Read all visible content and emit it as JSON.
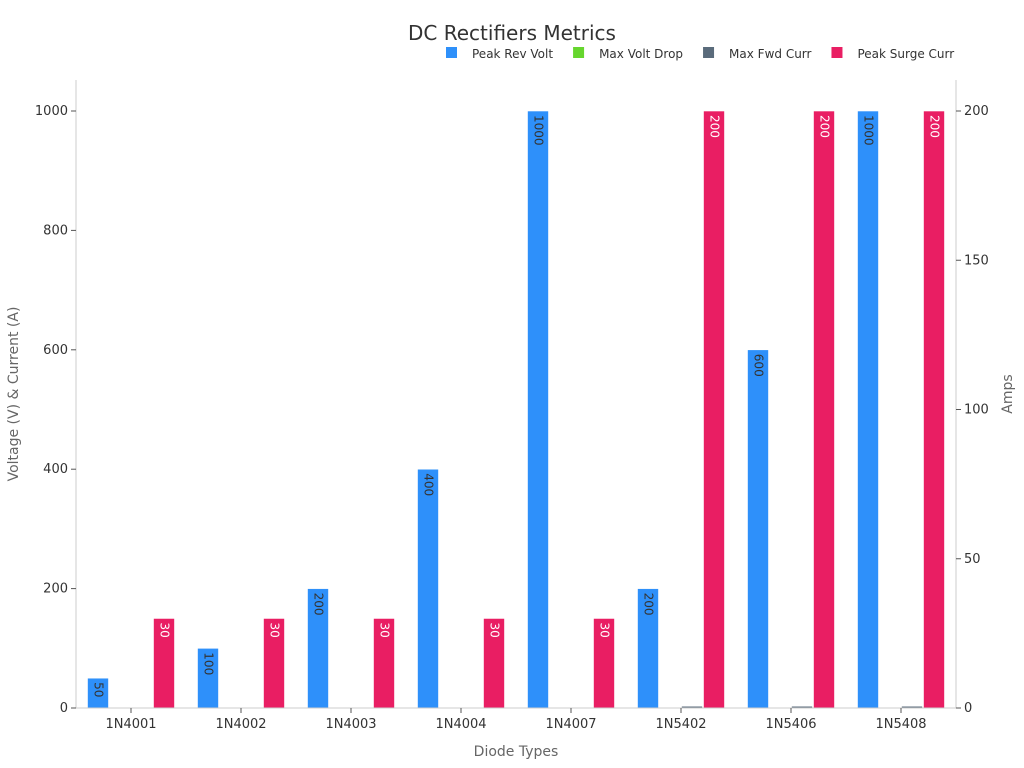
{
  "chart_data": {
    "type": "bar",
    "title": "DC Rectifiers Metrics",
    "xlabel": "Diode Types",
    "ylabel": "Voltage (V) & Current (A)",
    "y2label": "Amps",
    "categories": [
      "1N4001",
      "1N4002",
      "1N4003",
      "1N4004",
      "1N4007",
      "1N5402",
      "1N5406",
      "1N5408"
    ],
    "ylim": [
      0,
      1050
    ],
    "y2lim": [
      0,
      210
    ],
    "yticks": [
      0,
      200,
      400,
      600,
      800,
      1000
    ],
    "y2ticks": [
      0,
      50,
      100,
      150,
      200
    ],
    "legend_position": "top-right",
    "series": [
      {
        "name": "Peak Rev Volt",
        "axis": "left",
        "color": "#2e90fa",
        "label_color": "#333333",
        "values": [
          50,
          100,
          200,
          400,
          1000,
          200,
          600,
          1000
        ]
      },
      {
        "name": "Max Volt Drop",
        "axis": "left",
        "color": "#66d62e",
        "label_color": "#333333",
        "values": [
          1.1,
          1.1,
          1.1,
          1.1,
          1.1,
          1.2,
          1.2,
          1.2
        ]
      },
      {
        "name": "Max Fwd Curr",
        "axis": "left",
        "color": "#5a6b7b",
        "label_color": "#ffffff",
        "values": [
          1,
          1,
          1,
          1,
          1,
          3,
          3,
          3
        ]
      },
      {
        "name": "Peak Surge Curr",
        "axis": "right",
        "color": "#e91e63",
        "label_color": "#ffffff",
        "values": [
          30,
          30,
          30,
          30,
          30,
          200,
          200,
          200
        ]
      }
    ]
  }
}
